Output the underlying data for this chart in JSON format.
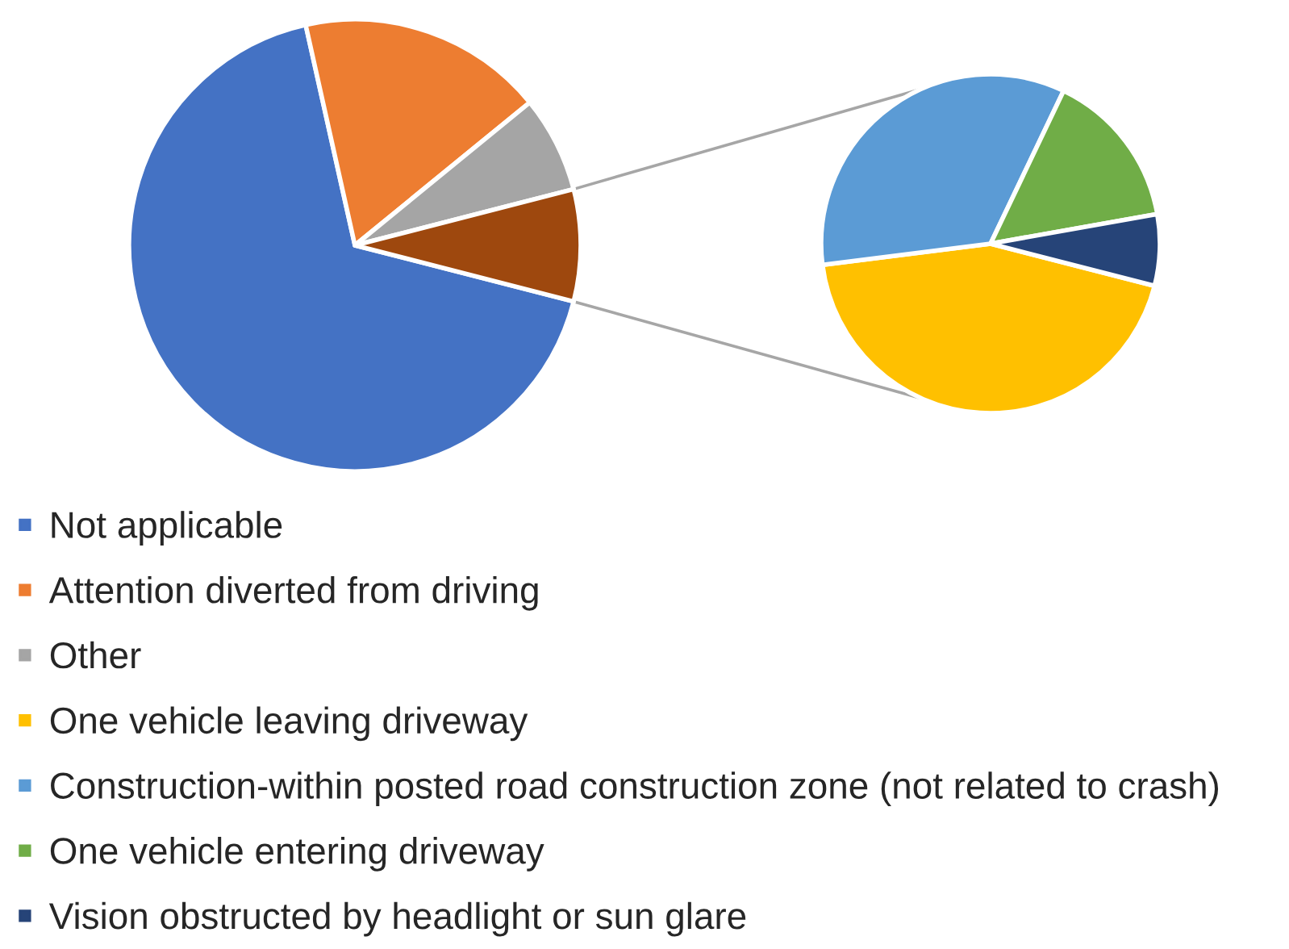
{
  "chart_data": [
    {
      "type": "pie",
      "categories": [
        "Not applicable",
        "Attention diverted from driving",
        "Other",
        null
      ],
      "values": [
        67.5,
        17.6,
        6.9,
        8.0
      ],
      "colors": [
        "#4472c4",
        "#ed7d31",
        "#a5a5a5",
        "#9e480e"
      ],
      "legend": "bottom left"
    },
    {
      "type": "pie",
      "categories": [
        "One vehicle leaving driveway",
        "Construction-within posted road construction zone (not related to crash)",
        "One vehicle entering driveway",
        "Vision obstructed by headlight or sun glare"
      ],
      "values": [
        44.0,
        34.1,
        15.1,
        6.8
      ],
      "colors": [
        "#ffc000",
        "#5b9bd5",
        "#70ad47",
        "#264478"
      ],
      "legend": "bottom left"
    }
  ]
}
